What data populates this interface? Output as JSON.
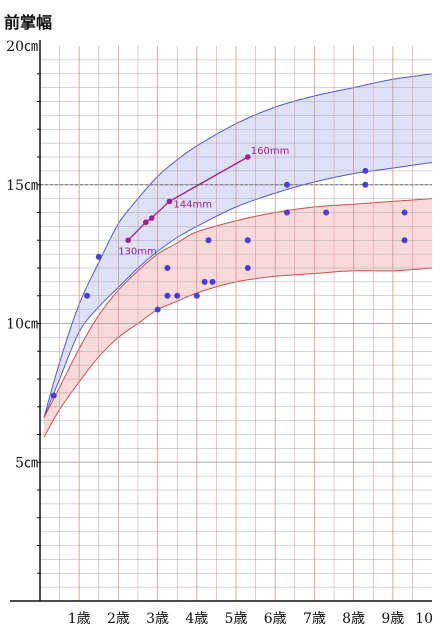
{
  "chart_data": {
    "type": "scatter",
    "title": "前掌幅",
    "xlim": [
      0,
      10
    ],
    "ylim": [
      0,
      20
    ],
    "x_tick_labels": [
      {
        "x": 1,
        "label": "1歳"
      },
      {
        "x": 2,
        "label": "2歳"
      },
      {
        "x": 3,
        "label": "3歳"
      },
      {
        "x": 4,
        "label": "4歳"
      },
      {
        "x": 5,
        "label": "5歳"
      },
      {
        "x": 6,
        "label": "6歳"
      },
      {
        "x": 7,
        "label": "7歳"
      },
      {
        "x": 8,
        "label": "8歳"
      },
      {
        "x": 9,
        "label": "9歳"
      },
      {
        "x": 10,
        "label": "10"
      }
    ],
    "y_tick_labels": [
      {
        "y": 5,
        "label": "5㎝"
      },
      {
        "y": 10,
        "label": "10㎝"
      },
      {
        "y": 15,
        "label": "15㎝"
      },
      {
        "y": 20,
        "label": "20㎝"
      }
    ],
    "reference_line": {
      "y": 15,
      "style": "dashed"
    },
    "bands": [
      {
        "color": "#5058d0",
        "fill": "#dfe1fb",
        "upper": [
          [
            0.1,
            6.6
          ],
          [
            0.5,
            8.6
          ],
          [
            1,
            10.7
          ],
          [
            1.5,
            12.2
          ],
          [
            2,
            13.6
          ],
          [
            2.5,
            14.5
          ],
          [
            3,
            15.3
          ],
          [
            3.5,
            15.9
          ],
          [
            4,
            16.4
          ],
          [
            5,
            17.2
          ],
          [
            6,
            17.8
          ],
          [
            7,
            18.2
          ],
          [
            8,
            18.5
          ],
          [
            9,
            18.8
          ],
          [
            10,
            19.0
          ]
        ],
        "lower": [
          [
            0.1,
            6.6
          ],
          [
            0.5,
            8.0
          ],
          [
            1,
            9.7
          ],
          [
            1.5,
            10.6
          ],
          [
            2,
            11.3
          ],
          [
            2.5,
            12.0
          ],
          [
            3,
            12.6
          ],
          [
            3.5,
            13.1
          ],
          [
            4,
            13.5
          ],
          [
            5,
            14.2
          ],
          [
            6,
            14.7
          ],
          [
            7,
            15.1
          ],
          [
            8,
            15.4
          ],
          [
            9,
            15.6
          ],
          [
            10,
            15.8
          ]
        ]
      },
      {
        "color": "#c85050",
        "fill": "#f9dada",
        "upper": [
          [
            0.1,
            6.6
          ],
          [
            0.5,
            7.7
          ],
          [
            1,
            9.1
          ],
          [
            1.5,
            10.3
          ],
          [
            2,
            11.2
          ],
          [
            2.5,
            11.9
          ],
          [
            3,
            12.5
          ],
          [
            3.5,
            12.9
          ],
          [
            4,
            13.3
          ],
          [
            5,
            13.7
          ],
          [
            6,
            14.0
          ],
          [
            7,
            14.2
          ],
          [
            8,
            14.3
          ],
          [
            9,
            14.4
          ],
          [
            10,
            14.5
          ]
        ],
        "lower": [
          [
            0.1,
            5.9
          ],
          [
            0.5,
            6.9
          ],
          [
            1,
            7.9
          ],
          [
            1.5,
            8.8
          ],
          [
            2,
            9.5
          ],
          [
            2.5,
            10.0
          ],
          [
            3,
            10.5
          ],
          [
            3.5,
            10.8
          ],
          [
            4,
            11.1
          ],
          [
            5,
            11.5
          ],
          [
            6,
            11.7
          ],
          [
            7,
            11.8
          ],
          [
            8,
            11.9
          ],
          [
            9,
            11.9
          ],
          [
            10,
            12.0
          ]
        ]
      }
    ],
    "points": [
      [
        0.35,
        7.4
      ],
      [
        1.2,
        11.0
      ],
      [
        1.5,
        12.4
      ],
      [
        3.0,
        10.5
      ],
      [
        3.25,
        12.0
      ],
      [
        3.25,
        11.0
      ],
      [
        3.5,
        11.0
      ],
      [
        4.0,
        11.0
      ],
      [
        4.2,
        11.5
      ],
      [
        4.3,
        13.0
      ],
      [
        4.4,
        11.5
      ],
      [
        5.3,
        13.0
      ],
      [
        5.3,
        12.0
      ],
      [
        6.3,
        15.0
      ],
      [
        6.3,
        14.0
      ],
      [
        7.3,
        14.0
      ],
      [
        8.3,
        15.5
      ],
      [
        8.3,
        15.0
      ],
      [
        9.3,
        14.0
      ],
      [
        9.3,
        13.0
      ]
    ],
    "growth_series": [
      {
        "color": "#a0208a",
        "points": [
          [
            2.25,
            13.0
          ],
          [
            2.7,
            13.65
          ],
          [
            2.85,
            13.8
          ],
          [
            3.3,
            14.4
          ],
          [
            5.3,
            16.0
          ]
        ],
        "labels": [
          {
            "text": "130mm",
            "at": [
              2.25,
              13.0
            ]
          },
          {
            "text": "144mm",
            "at": [
              3.3,
              14.4
            ]
          },
          {
            "text": "160mm",
            "at": [
              5.3,
              16.0
            ]
          }
        ]
      }
    ],
    "colors": {
      "grid_h": "#9a9a9a",
      "grid_v": "#d49090",
      "point": "#4b3ed8",
      "axis": "#111111"
    }
  }
}
